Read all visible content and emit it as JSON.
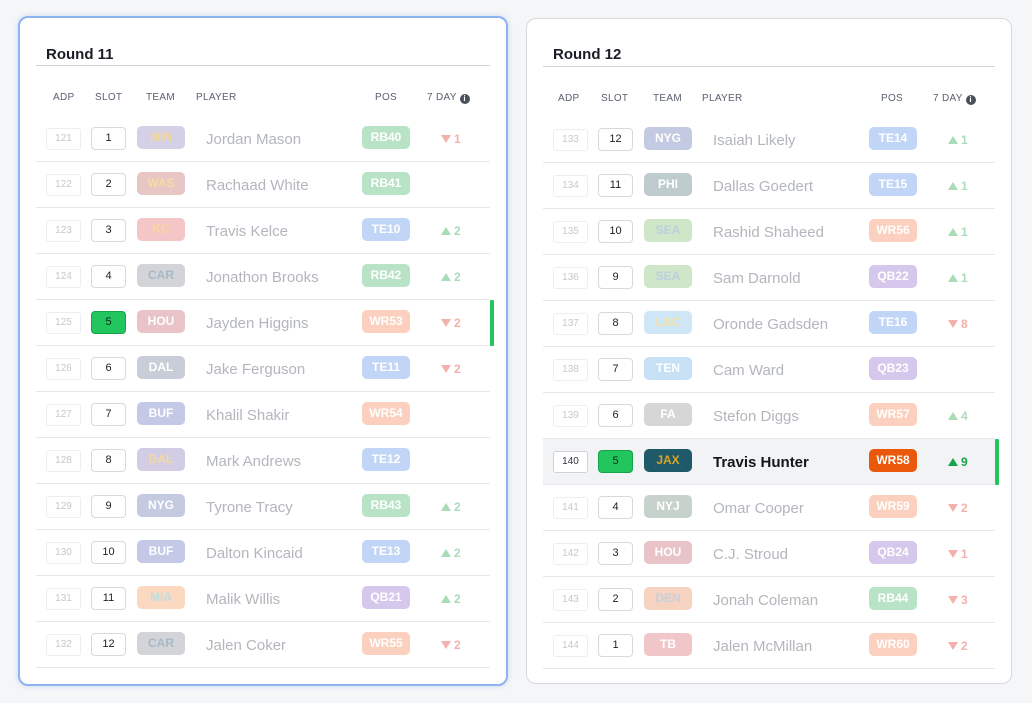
{
  "headers": {
    "adp": "ADP",
    "slot": "SLOT",
    "team": "TEAM",
    "player": "PLAYER",
    "pos": "POS",
    "seven_day": "7 DAY",
    "info_icon": "i"
  },
  "team_colors": {
    "MIN": [
      "#d6d0e6",
      "#f0d898"
    ],
    "WAS": [
      "#e8c6c6",
      "#f2dca0"
    ],
    "KC": [
      "#f5c6c8",
      "#f6d99a"
    ],
    "CAR": [
      "#d2d4d8",
      "#a9b8c8"
    ],
    "HOU": [
      "#e8c3c8",
      "#ffffff"
    ],
    "DAL": [
      "#c8cdd8",
      "#ffffff"
    ],
    "BUF": [
      "#c3c9e6",
      "#ffffff"
    ],
    "BAL": [
      "#d2cce4",
      "#f3d9a3"
    ],
    "NYG": [
      "#c3cae2",
      "#ffffff"
    ],
    "MIA": [
      "#fbd9c0",
      "#c1dcdc"
    ],
    "PHI": [
      "#bfcccf",
      "#ffffff"
    ],
    "SEA": [
      "#cfe6c8",
      "#bcd0e0"
    ],
    "LAC": [
      "#cfe6f6",
      "#f6e2a0"
    ],
    "TEN": [
      "#c8e0f6",
      "#ffffff"
    ],
    "FA": [
      "#d6d6d6",
      "#ffffff"
    ],
    "JAX": [
      "#1f5a6a",
      "#d8a526"
    ],
    "NYJ": [
      "#c8d2cc",
      "#ffffff"
    ],
    "DEN": [
      "#f6d2c0",
      "#c8d0dc"
    ],
    "TB": [
      "#f0c6c8",
      "#ffffff"
    ]
  },
  "pos_colors": {
    "RB": [
      "#b9e3c6",
      "#ffffff"
    ],
    "TE": [
      "#c1d6f6",
      "#ffffff"
    ],
    "WR": [
      "#fbd0be",
      "#ffffff"
    ],
    "QB": [
      "#d6c8ec",
      "#ffffff"
    ],
    "WR_active": [
      "#ea580c",
      "#ffffff"
    ]
  },
  "rounds": [
    {
      "title": "Round 11",
      "active": true,
      "picks": [
        {
          "adp": "121",
          "slot": "1",
          "team": "MIN",
          "player": "Jordan Mason",
          "pos": "RB40",
          "dir": "down",
          "change": "1"
        },
        {
          "adp": "122",
          "slot": "2",
          "team": "WAS",
          "player": "Rachaad White",
          "pos": "RB41",
          "dir": "",
          "change": ""
        },
        {
          "adp": "123",
          "slot": "3",
          "team": "KC",
          "player": "Travis Kelce",
          "pos": "TE10",
          "dir": "up",
          "change": "2"
        },
        {
          "adp": "124",
          "slot": "4",
          "team": "CAR",
          "player": "Jonathon Brooks",
          "pos": "RB42",
          "dir": "up",
          "change": "2"
        },
        {
          "adp": "125",
          "slot": "5",
          "team": "HOU",
          "player": "Jayden Higgins",
          "pos": "WR53",
          "dir": "down",
          "change": "2",
          "current_slot": true
        },
        {
          "adp": "126",
          "slot": "6",
          "team": "DAL",
          "player": "Jake Ferguson",
          "pos": "TE11",
          "dir": "down",
          "change": "2"
        },
        {
          "adp": "127",
          "slot": "7",
          "team": "BUF",
          "player": "Khalil Shakir",
          "pos": "WR54",
          "dir": "",
          "change": ""
        },
        {
          "adp": "128",
          "slot": "8",
          "team": "BAL",
          "player": "Mark Andrews",
          "pos": "TE12",
          "dir": "",
          "change": ""
        },
        {
          "adp": "129",
          "slot": "9",
          "team": "NYG",
          "player": "Tyrone Tracy",
          "pos": "RB43",
          "dir": "up",
          "change": "2"
        },
        {
          "adp": "130",
          "slot": "10",
          "team": "BUF",
          "player": "Dalton Kincaid",
          "pos": "TE13",
          "dir": "up",
          "change": "2"
        },
        {
          "adp": "131",
          "slot": "11",
          "team": "MIA",
          "player": "Malik Willis",
          "pos": "QB21",
          "dir": "up",
          "change": "2"
        },
        {
          "adp": "132",
          "slot": "12",
          "team": "CAR",
          "player": "Jalen Coker",
          "pos": "WR55",
          "dir": "down",
          "change": "2"
        }
      ]
    },
    {
      "title": "Round 12",
      "active": false,
      "picks": [
        {
          "adp": "133",
          "slot": "12",
          "team": "NYG",
          "player": "Isaiah Likely",
          "pos": "TE14",
          "dir": "up",
          "change": "1"
        },
        {
          "adp": "134",
          "slot": "11",
          "team": "PHI",
          "player": "Dallas Goedert",
          "pos": "TE15",
          "dir": "up",
          "change": "1"
        },
        {
          "adp": "135",
          "slot": "10",
          "team": "SEA",
          "player": "Rashid Shaheed",
          "pos": "WR56",
          "dir": "up",
          "change": "1"
        },
        {
          "adp": "136",
          "slot": "9",
          "team": "SEA",
          "player": "Sam Darnold",
          "pos": "QB22",
          "dir": "up",
          "change": "1"
        },
        {
          "adp": "137",
          "slot": "8",
          "team": "LAC",
          "player": "Oronde Gadsden",
          "pos": "TE16",
          "dir": "down",
          "change": "8"
        },
        {
          "adp": "138",
          "slot": "7",
          "team": "TEN",
          "player": "Cam Ward",
          "pos": "QB23",
          "dir": "",
          "change": ""
        },
        {
          "adp": "139",
          "slot": "6",
          "team": "FA",
          "player": "Stefon Diggs",
          "pos": "WR57",
          "dir": "up",
          "change": "4"
        },
        {
          "adp": "140",
          "slot": "5",
          "team": "JAX",
          "player": "Travis Hunter",
          "pos": "WR58",
          "dir": "up",
          "change": "9",
          "current_slot": true,
          "highlight": true
        },
        {
          "adp": "141",
          "slot": "4",
          "team": "NYJ",
          "player": "Omar Cooper",
          "pos": "WR59",
          "dir": "down",
          "change": "2"
        },
        {
          "adp": "142",
          "slot": "3",
          "team": "HOU",
          "player": "C.J. Stroud",
          "pos": "QB24",
          "dir": "down",
          "change": "1"
        },
        {
          "adp": "143",
          "slot": "2",
          "team": "DEN",
          "player": "Jonah Coleman",
          "pos": "RB44",
          "dir": "down",
          "change": "3"
        },
        {
          "adp": "144",
          "slot": "1",
          "team": "TB",
          "player": "Jalen McMillan",
          "pos": "WR60",
          "dir": "down",
          "change": "2"
        }
      ]
    }
  ]
}
